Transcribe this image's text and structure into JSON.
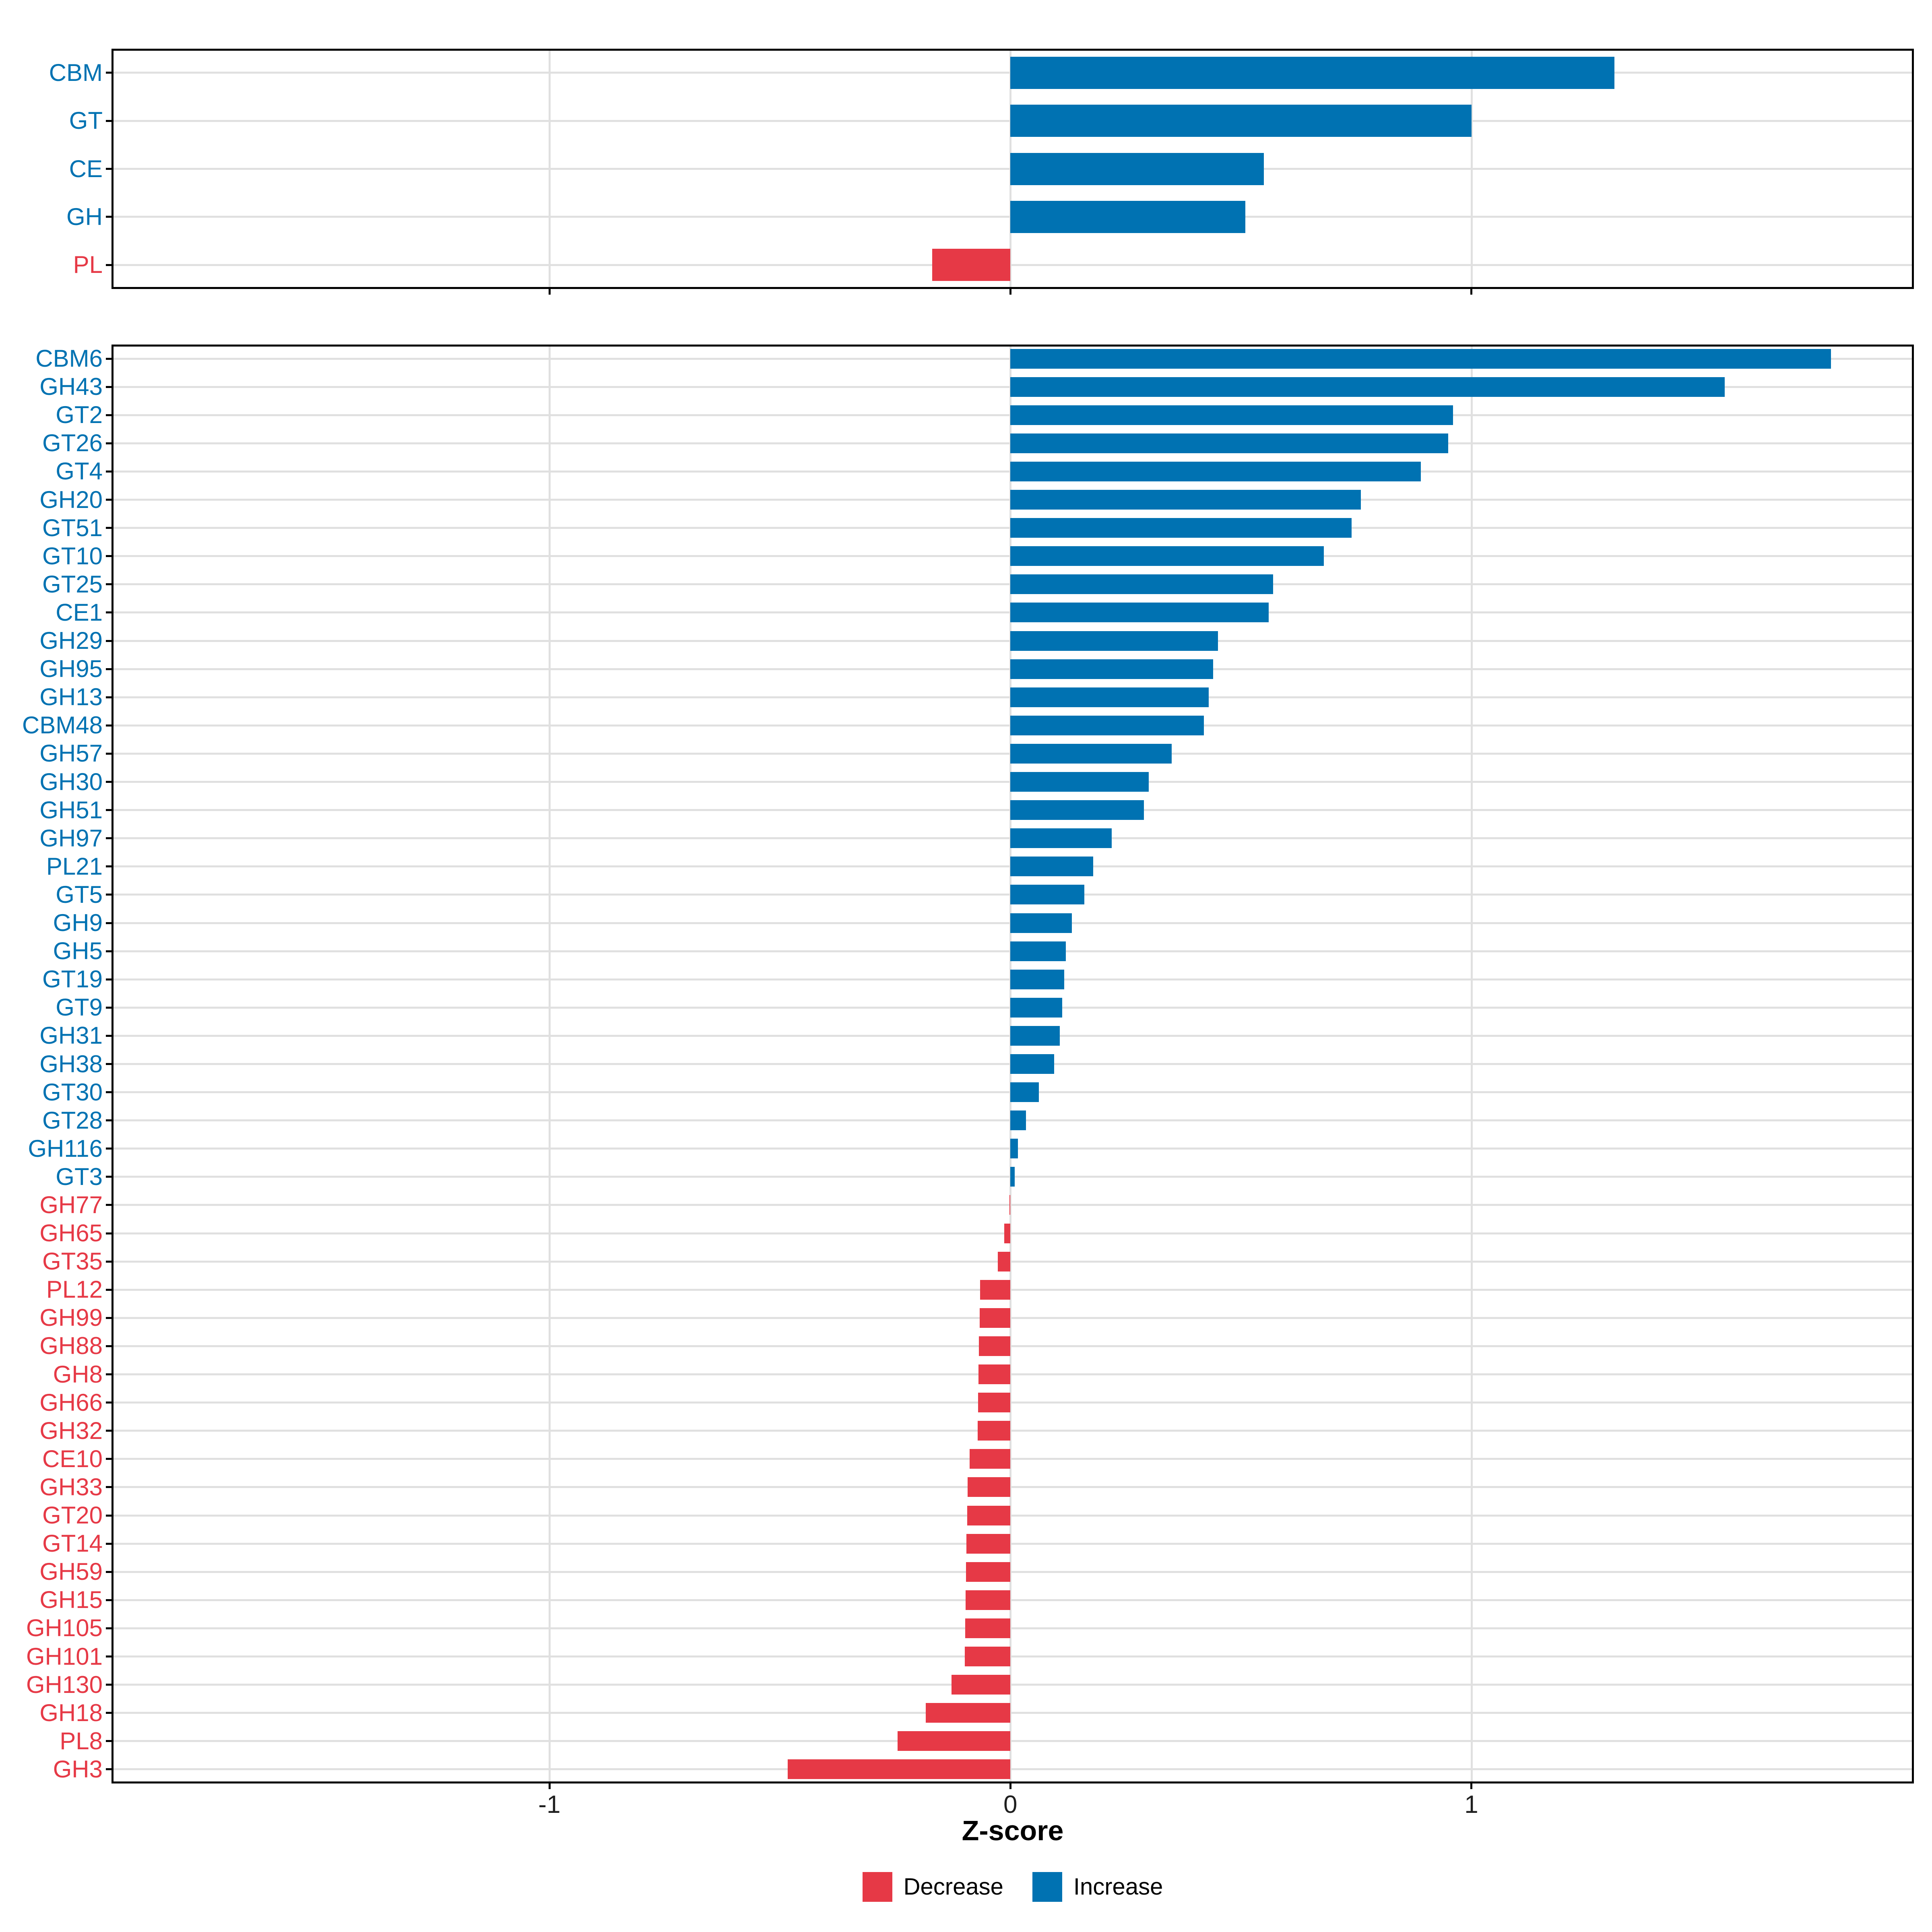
{
  "figure": {
    "x_axis_label": "Z-score"
  },
  "x_axis": {
    "tick_values": [
      -1,
      0,
      1
    ],
    "tick_labels": [
      "-1",
      "0",
      "1"
    ],
    "min": -1.95,
    "max": 1.96
  },
  "legend": {
    "items": [
      {
        "label": "Decrease",
        "color": "#E63946"
      },
      {
        "label": "Increase",
        "color": "#0072B2"
      }
    ]
  },
  "colors": {
    "increase": "#0072B2",
    "decrease": "#E63946",
    "gridline": "#E0E0E0",
    "panel_border": "#000000",
    "axis_text": "#1f1f1f"
  },
  "chart_data": [
    {
      "type": "bar",
      "orientation": "horizontal",
      "panel": "cazyme-classes",
      "xlabel": "Z-score",
      "xlim": [
        -1.95,
        1.96
      ],
      "grid": true,
      "legend_position": "bottom",
      "categories": [
        "CBM",
        "GT",
        "CE",
        "GH",
        "PL"
      ],
      "values": [
        1.31,
        1.0,
        0.55,
        0.51,
        -0.17
      ]
    },
    {
      "type": "bar",
      "orientation": "horizontal",
      "panel": "cazyme-families",
      "xlabel": "Z-score",
      "xlim": [
        -1.95,
        1.96
      ],
      "grid": true,
      "legend_position": "bottom",
      "categories": [
        "CBM6",
        "GH43",
        "GT2",
        "GT26",
        "GT4",
        "GH20",
        "GT51",
        "GT10",
        "GT25",
        "CE1",
        "GH29",
        "GH95",
        "GH13",
        "CBM48",
        "GH57",
        "GH30",
        "GH51",
        "GH97",
        "PL21",
        "GT5",
        "GH9",
        "GH5",
        "GT19",
        "GT9",
        "GH31",
        "GH38",
        "GT30",
        "GT28",
        "GH116",
        "GT3",
        "GH77",
        "GH65",
        "GT35",
        "PL12",
        "GH99",
        "GH88",
        "GH8",
        "GH66",
        "GH32",
        "CE10",
        "GH33",
        "GT20",
        "GT14",
        "GH59",
        "GH15",
        "GH105",
        "GH101",
        "GH130",
        "GH18",
        "PL8",
        "GH3"
      ],
      "values": [
        1.78,
        1.55,
        0.96,
        0.95,
        0.89,
        0.76,
        0.74,
        0.68,
        0.57,
        0.56,
        0.45,
        0.44,
        0.43,
        0.42,
        0.35,
        0.3,
        0.29,
        0.22,
        0.18,
        0.16,
        0.133,
        0.12,
        0.117,
        0.112,
        0.107,
        0.095,
        0.062,
        0.034,
        0.016,
        0.009,
        -0.002,
        -0.013,
        -0.027,
        -0.066,
        -0.067,
        -0.068,
        -0.069,
        -0.07,
        -0.071,
        -0.088,
        -0.093,
        -0.094,
        -0.095,
        -0.096,
        -0.097,
        -0.098,
        -0.099,
        -0.128,
        -0.184,
        -0.245,
        -0.483
      ]
    }
  ]
}
